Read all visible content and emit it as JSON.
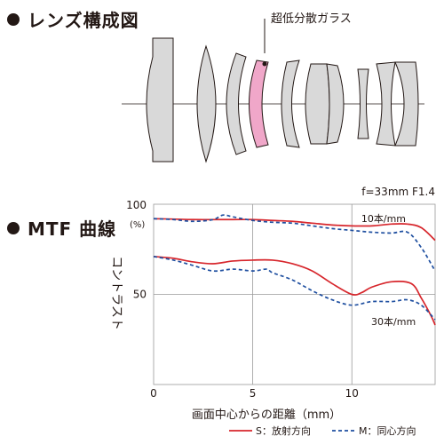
{
  "sections": {
    "lens": {
      "heading": "レンズ構成図",
      "annotation": "超低分散ガラス"
    },
    "mtf": {
      "heading": "MTF 曲線"
    }
  },
  "colors": {
    "sagittal": "#d7262c",
    "meridional": "#1f4fa0",
    "ed_glass": "#f0a7c9",
    "lens_glass": "#d9d9d9"
  },
  "chart_data": {
    "type": "line",
    "title": "f=33mm F1.4",
    "xlabel": "画面中心からの距離（mm）",
    "ylabel": "コントラスト",
    "y_unit": "(%)",
    "xlim": [
      0,
      14.2
    ],
    "ylim": [
      0,
      100
    ],
    "x_ticks": [
      "0",
      "5",
      "10"
    ],
    "y_ticks": [
      "100",
      "50"
    ],
    "grid": true,
    "legend": {
      "position": "bottom-right",
      "items": [
        {
          "label": "S：放射方向",
          "style": "solid",
          "color": "#d7262c"
        },
        {
          "label": "M：同心方向",
          "style": "dashed",
          "color": "#1f4fa0"
        }
      ]
    },
    "annotations": [
      {
        "text": "10本/mm",
        "x": 11.6,
        "y": 92
      },
      {
        "text": "30本/mm",
        "x": 12.1,
        "y": 35
      }
    ],
    "series": [
      {
        "freq": "10本/mm",
        "type": "S",
        "style": "solid",
        "x": [
          0,
          2,
          4,
          5,
          6,
          7,
          8,
          9,
          10,
          11,
          12,
          12.8,
          13.5,
          14.2
        ],
        "y": [
          92,
          91.5,
          91.5,
          91.5,
          91,
          90.5,
          89.5,
          88.5,
          88,
          88,
          89,
          89,
          87,
          80
        ]
      },
      {
        "freq": "10本/mm",
        "type": "M",
        "style": "dashed",
        "x": [
          0,
          1,
          2,
          3,
          3.5,
          4,
          5,
          6,
          7,
          8,
          9,
          10,
          11,
          12,
          12.8,
          13.5,
          14.2
        ],
        "y": [
          92,
          91.5,
          90.5,
          91.5,
          94,
          93,
          91,
          90,
          89.5,
          88,
          86.5,
          85.5,
          84.5,
          84,
          84.5,
          76,
          63
        ]
      },
      {
        "freq": "30本/mm",
        "type": "S",
        "style": "solid",
        "x": [
          0,
          1,
          2,
          3,
          4,
          5,
          6,
          7,
          8,
          9,
          10,
          10.5,
          11,
          12,
          13,
          13.5,
          14,
          14.2
        ],
        "y": [
          71,
          70,
          68,
          67,
          68.5,
          69,
          69,
          67,
          63,
          56,
          50,
          51,
          54,
          57,
          56,
          48,
          38,
          33
        ]
      },
      {
        "freq": "30本/mm",
        "type": "M",
        "style": "dashed",
        "x": [
          0,
          1,
          2,
          3,
          4,
          5,
          5.7,
          6,
          7,
          8,
          9,
          10,
          11,
          12,
          12.8,
          13.5,
          14.2
        ],
        "y": [
          71,
          69,
          66,
          63,
          64,
          63,
          64,
          62,
          58,
          52,
          47,
          44,
          46,
          46,
          47,
          44,
          36
        ]
      }
    ]
  }
}
